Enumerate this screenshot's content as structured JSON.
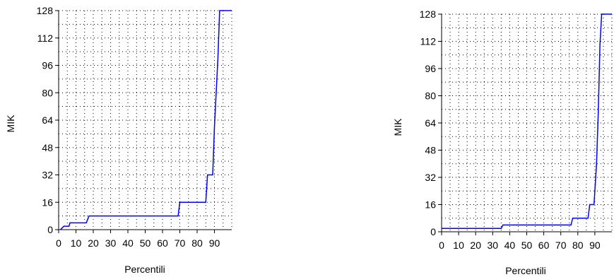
{
  "chart_data": [
    {
      "type": "line",
      "title": "",
      "xlabel": "Percentili",
      "ylabel": "MIK",
      "xlim": [
        0,
        100
      ],
      "ylim": [
        0,
        128
      ],
      "x_ticks": [
        0,
        10,
        20,
        30,
        40,
        50,
        60,
        70,
        80,
        90
      ],
      "y_ticks": [
        0,
        16,
        32,
        48,
        64,
        80,
        96,
        112,
        128
      ],
      "grid": "dotted",
      "legend": "none",
      "line_color": "#0000ff",
      "series": [
        {
          "x": [
            1,
            3,
            6,
            6.5,
            16,
            17.5,
            69,
            70,
            85,
            86,
            89,
            90,
            92,
            93,
            100
          ],
          "y": [
            0,
            2,
            2,
            4,
            4,
            8,
            8,
            16,
            16,
            32,
            32,
            60,
            100,
            128,
            128
          ]
        }
      ]
    },
    {
      "type": "line",
      "title": "",
      "xlabel": "Percentili",
      "ylabel": "MIK",
      "xlim": [
        0,
        100
      ],
      "ylim": [
        0,
        128
      ],
      "x_ticks": [
        0,
        10,
        20,
        30,
        40,
        50,
        60,
        70,
        80,
        90
      ],
      "y_ticks": [
        0,
        16,
        32,
        48,
        64,
        80,
        96,
        112,
        128
      ],
      "grid": "dotted",
      "legend": "none",
      "line_color": "#0000ff",
      "series": [
        {
          "x": [
            0,
            35,
            36,
            76,
            77,
            86,
            87,
            89.5,
            91,
            92,
            93,
            94,
            100
          ],
          "y": [
            2,
            2,
            4,
            4,
            8,
            8,
            16,
            16,
            40,
            70,
            110,
            128,
            128
          ]
        }
      ]
    }
  ]
}
